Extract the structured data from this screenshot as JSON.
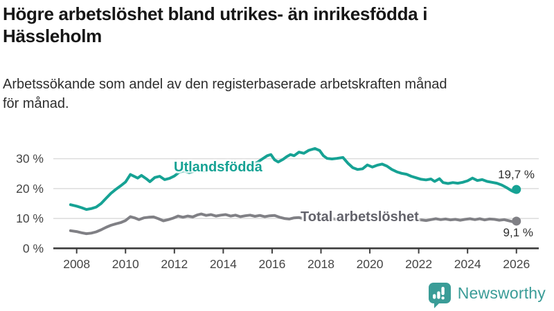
{
  "header": {
    "title_line1": "Högre arbetslöshet bland utrikes- än inrikesfödda i",
    "title_line2": "Hässleholm",
    "subtitle_line1": "Arbetssökande som andel av den registerbaserade arbetskraften månad",
    "subtitle_line2": "för månad."
  },
  "colors": {
    "accent_teal": "#16a294",
    "gray_line": "#808085",
    "gray_label": "#63636b",
    "axis": "#3e3e3e",
    "grid": "#dcdcdc",
    "tick_text": "#454545",
    "value_text": "#2e2e2e",
    "brand_teal": "#3a9c97"
  },
  "footer": {
    "brand": "Newsworthy",
    "logo_icon": "speech-bubble-bar-chart"
  },
  "chart_data": {
    "type": "line",
    "title": "Högre arbetslöshet bland utrikes- än inrikesfödda i Hässleholm",
    "subtitle": "Arbetssökande som andel av den registerbaserade arbetskraften månad för månad.",
    "xlabel": "",
    "ylabel": "",
    "unit": "%",
    "x_range": [
      2007.75,
      2026.0
    ],
    "ylim": [
      0,
      35
    ],
    "grid": "horizontal",
    "legend_position": "inline-labels",
    "y_ticks": [
      0,
      10,
      20,
      30
    ],
    "y_tick_labels": [
      "0 %",
      "10 %",
      "20 %",
      "30 %"
    ],
    "x_ticks": [
      2008,
      2010,
      2012,
      2014,
      2016,
      2018,
      2020,
      2022,
      2024,
      2026
    ],
    "x_tick_labels": [
      "2008",
      "2010",
      "2012",
      "2014",
      "2016",
      "2018",
      "2020",
      "2022",
      "2024",
      "2026"
    ],
    "series": [
      {
        "name": "Utlandsfödda",
        "color": "#16a294",
        "end_dot": true,
        "end_value": 19.7,
        "end_label": "19,7 %",
        "points": [
          [
            2007.75,
            14.6
          ],
          [
            2008.0,
            14.1
          ],
          [
            2008.2,
            13.6
          ],
          [
            2008.4,
            13.0
          ],
          [
            2008.6,
            13.3
          ],
          [
            2008.8,
            13.8
          ],
          [
            2009.0,
            15.0
          ],
          [
            2009.2,
            16.7
          ],
          [
            2009.4,
            18.4
          ],
          [
            2009.6,
            19.7
          ],
          [
            2009.8,
            20.9
          ],
          [
            2010.0,
            22.2
          ],
          [
            2010.2,
            24.7
          ],
          [
            2010.35,
            24.1
          ],
          [
            2010.5,
            23.5
          ],
          [
            2010.65,
            24.4
          ],
          [
            2010.85,
            23.3
          ],
          [
            2011.0,
            22.3
          ],
          [
            2011.2,
            23.7
          ],
          [
            2011.4,
            24.1
          ],
          [
            2011.6,
            23.0
          ],
          [
            2011.8,
            23.4
          ],
          [
            2012.0,
            24.2
          ],
          [
            2012.2,
            25.5
          ],
          [
            2012.4,
            25.9
          ],
          [
            2012.6,
            25.3
          ],
          [
            2012.8,
            25.8
          ],
          [
            2013.0,
            26.3
          ],
          [
            2013.2,
            25.9
          ],
          [
            2013.4,
            26.4
          ],
          [
            2013.6,
            26.0
          ],
          [
            2013.8,
            26.3
          ],
          [
            2014.0,
            26.7
          ],
          [
            2014.2,
            26.4
          ],
          [
            2014.4,
            27.0
          ],
          [
            2014.6,
            26.6
          ],
          [
            2014.8,
            27.1
          ],
          [
            2015.0,
            27.6
          ],
          [
            2015.2,
            28.2
          ],
          [
            2015.4,
            28.8
          ],
          [
            2015.6,
            29.9
          ],
          [
            2015.8,
            31.0
          ],
          [
            2015.95,
            31.4
          ],
          [
            2016.1,
            29.6
          ],
          [
            2016.25,
            28.9
          ],
          [
            2016.45,
            29.8
          ],
          [
            2016.6,
            30.7
          ],
          [
            2016.75,
            31.4
          ],
          [
            2016.9,
            31.0
          ],
          [
            2017.1,
            32.2
          ],
          [
            2017.3,
            31.8
          ],
          [
            2017.5,
            32.8
          ],
          [
            2017.75,
            33.4
          ],
          [
            2017.95,
            32.7
          ],
          [
            2018.1,
            31.0
          ],
          [
            2018.25,
            30.1
          ],
          [
            2018.45,
            29.9
          ],
          [
            2018.65,
            30.1
          ],
          [
            2018.9,
            30.4
          ],
          [
            2019.1,
            28.5
          ],
          [
            2019.3,
            27.0
          ],
          [
            2019.5,
            26.4
          ],
          [
            2019.7,
            26.6
          ],
          [
            2019.9,
            27.9
          ],
          [
            2020.1,
            27.2
          ],
          [
            2020.3,
            27.8
          ],
          [
            2020.5,
            28.2
          ],
          [
            2020.7,
            27.5
          ],
          [
            2020.9,
            26.4
          ],
          [
            2021.1,
            25.6
          ],
          [
            2021.3,
            25.1
          ],
          [
            2021.5,
            24.8
          ],
          [
            2021.7,
            24.1
          ],
          [
            2021.9,
            23.6
          ],
          [
            2022.1,
            23.1
          ],
          [
            2022.3,
            22.9
          ],
          [
            2022.5,
            23.2
          ],
          [
            2022.65,
            22.4
          ],
          [
            2022.85,
            23.3
          ],
          [
            2023.0,
            22.0
          ],
          [
            2023.2,
            21.7
          ],
          [
            2023.4,
            22.0
          ],
          [
            2023.6,
            21.8
          ],
          [
            2023.8,
            22.1
          ],
          [
            2024.0,
            22.6
          ],
          [
            2024.2,
            23.5
          ],
          [
            2024.4,
            22.7
          ],
          [
            2024.6,
            23.0
          ],
          [
            2024.8,
            22.4
          ],
          [
            2025.0,
            22.1
          ],
          [
            2025.2,
            21.8
          ],
          [
            2025.4,
            21.2
          ],
          [
            2025.6,
            20.3
          ],
          [
            2025.8,
            19.3
          ],
          [
            2025.9,
            18.9
          ],
          [
            2026.0,
            19.7
          ]
        ]
      },
      {
        "name": "Total arbetslöshet",
        "color": "#808085",
        "end_dot": true,
        "end_value": 9.1,
        "end_label": "9,1 %",
        "points": [
          [
            2007.75,
            5.9
          ],
          [
            2008.0,
            5.6
          ],
          [
            2008.2,
            5.2
          ],
          [
            2008.4,
            4.9
          ],
          [
            2008.6,
            5.1
          ],
          [
            2008.8,
            5.5
          ],
          [
            2009.0,
            6.2
          ],
          [
            2009.2,
            7.0
          ],
          [
            2009.4,
            7.7
          ],
          [
            2009.6,
            8.2
          ],
          [
            2009.8,
            8.6
          ],
          [
            2010.0,
            9.3
          ],
          [
            2010.2,
            10.6
          ],
          [
            2010.4,
            10.1
          ],
          [
            2010.55,
            9.6
          ],
          [
            2010.75,
            10.2
          ],
          [
            2010.95,
            10.4
          ],
          [
            2011.15,
            10.5
          ],
          [
            2011.35,
            9.9
          ],
          [
            2011.55,
            9.2
          ],
          [
            2011.75,
            9.6
          ],
          [
            2011.95,
            10.1
          ],
          [
            2012.15,
            10.8
          ],
          [
            2012.35,
            10.4
          ],
          [
            2012.55,
            10.8
          ],
          [
            2012.75,
            10.5
          ],
          [
            2012.95,
            11.2
          ],
          [
            2013.1,
            11.5
          ],
          [
            2013.3,
            11.0
          ],
          [
            2013.5,
            11.3
          ],
          [
            2013.7,
            10.8
          ],
          [
            2013.9,
            11.1
          ],
          [
            2014.1,
            11.3
          ],
          [
            2014.3,
            10.8
          ],
          [
            2014.5,
            11.1
          ],
          [
            2014.7,
            10.6
          ],
          [
            2014.9,
            10.9
          ],
          [
            2015.1,
            11.1
          ],
          [
            2015.3,
            10.7
          ],
          [
            2015.5,
            11.0
          ],
          [
            2015.7,
            10.6
          ],
          [
            2015.9,
            10.9
          ],
          [
            2016.1,
            11.0
          ],
          [
            2016.3,
            10.4
          ],
          [
            2016.5,
            10.0
          ],
          [
            2016.7,
            9.8
          ],
          [
            2016.9,
            10.2
          ],
          [
            2017.1,
            10.3
          ],
          [
            2017.3,
            9.9
          ],
          [
            2017.5,
            10.1
          ],
          [
            2017.7,
            9.7
          ],
          [
            2017.9,
            10.0
          ],
          [
            2018.1,
            10.1
          ],
          [
            2018.3,
            9.7
          ],
          [
            2018.5,
            9.9
          ],
          [
            2018.7,
            9.5
          ],
          [
            2018.9,
            9.8
          ],
          [
            2019.1,
            9.9
          ],
          [
            2019.3,
            9.5
          ],
          [
            2019.5,
            9.7
          ],
          [
            2019.7,
            9.4
          ],
          [
            2019.9,
            9.8
          ],
          [
            2020.1,
            10.2
          ],
          [
            2020.3,
            10.6
          ],
          [
            2020.5,
            10.4
          ],
          [
            2020.7,
            10.6
          ],
          [
            2020.9,
            10.3
          ],
          [
            2021.1,
            10.1
          ],
          [
            2021.3,
            9.8
          ],
          [
            2021.5,
            9.6
          ],
          [
            2021.7,
            9.4
          ],
          [
            2021.9,
            9.6
          ],
          [
            2022.1,
            9.5
          ],
          [
            2022.3,
            9.3
          ],
          [
            2022.5,
            9.6
          ],
          [
            2022.7,
            9.9
          ],
          [
            2022.9,
            9.6
          ],
          [
            2023.1,
            9.8
          ],
          [
            2023.3,
            9.5
          ],
          [
            2023.5,
            9.7
          ],
          [
            2023.7,
            9.4
          ],
          [
            2023.9,
            9.7
          ],
          [
            2024.1,
            9.9
          ],
          [
            2024.3,
            9.6
          ],
          [
            2024.5,
            9.9
          ],
          [
            2024.7,
            9.5
          ],
          [
            2024.9,
            9.8
          ],
          [
            2025.1,
            9.7
          ],
          [
            2025.3,
            9.4
          ],
          [
            2025.5,
            9.6
          ],
          [
            2025.7,
            9.2
          ],
          [
            2025.85,
            8.9
          ],
          [
            2026.0,
            9.1
          ]
        ]
      }
    ]
  }
}
